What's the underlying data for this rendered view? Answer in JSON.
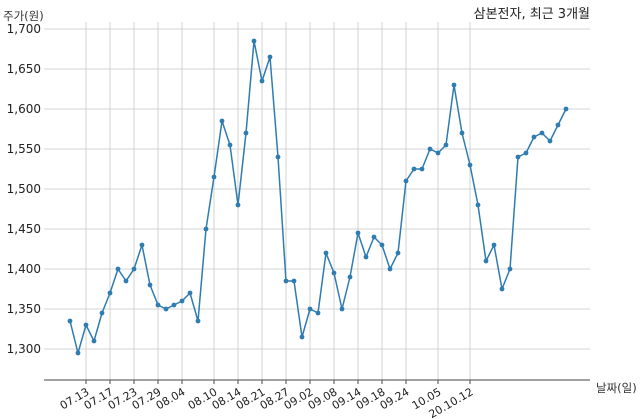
{
  "chart_data": {
    "type": "line",
    "title": "삼본전자, 최근 3개월",
    "ylabel": "주가(원)",
    "xlabel": "날짜(일)",
    "ylim": [
      1280,
      1700
    ],
    "yticks": [
      1300,
      1350,
      1400,
      1450,
      1500,
      1550,
      1600,
      1650,
      1700
    ],
    "ytick_labels": [
      "1,300",
      "1,350",
      "1,400",
      "1,450",
      "1,500",
      "1,550",
      "1,600",
      "1,650",
      "1,700"
    ],
    "xtick_labels": [
      "07.13",
      "07.17",
      "07.23",
      "07.29",
      "08.04",
      "08.10",
      "08.14",
      "08.21",
      "08.27",
      "09.02",
      "09.08",
      "09.14",
      "09.18",
      "09.24",
      "10.05",
      "20.10.12"
    ],
    "xtick_index": [
      2,
      5,
      8,
      11,
      14,
      18,
      21,
      24,
      27,
      30,
      33,
      36,
      39,
      42,
      46,
      50
    ],
    "grid": true,
    "line_color": "#2e7cb0",
    "series": [
      {
        "values": [
          1335,
          1295,
          1330,
          1310,
          1345,
          1370,
          1400,
          1385,
          1400,
          1430,
          1380,
          1355,
          1350,
          1355,
          1360,
          1370,
          1335,
          1450,
          1515,
          1585,
          1555,
          1480,
          1570,
          1685,
          1635,
          1665,
          1540,
          1385,
          1385,
          1315,
          1350,
          1345,
          1420,
          1395,
          1350,
          1390,
          1445,
          1415,
          1440,
          1430,
          1400,
          1420,
          1510,
          1525,
          1525,
          1550,
          1545,
          1555,
          1630,
          1570,
          1530,
          1480,
          1410,
          1430,
          1375,
          1400,
          1540,
          1545,
          1565,
          1570,
          1560,
          1580,
          1600
        ]
      }
    ]
  }
}
